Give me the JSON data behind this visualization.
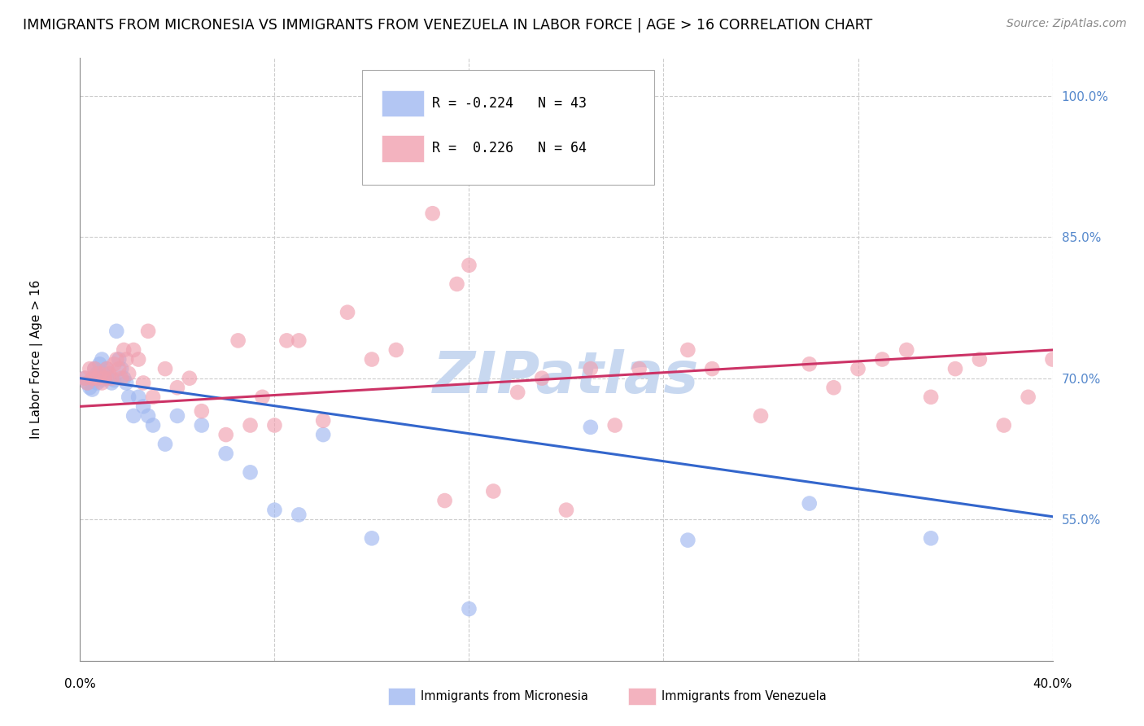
{
  "title": "IMMIGRANTS FROM MICRONESIA VS IMMIGRANTS FROM VENEZUELA IN LABOR FORCE | AGE > 16 CORRELATION CHART",
  "source": "Source: ZipAtlas.com",
  "ylabel": "In Labor Force | Age > 16",
  "ytick_labels": [
    "100.0%",
    "85.0%",
    "70.0%",
    "55.0%"
  ],
  "ytick_values": [
    1.0,
    0.85,
    0.7,
    0.55
  ],
  "xlim": [
    0.0,
    0.4
  ],
  "ylim": [
    0.4,
    1.04
  ],
  "watermark": "ZIPatlas",
  "micronesia_color": "#a0b8f0",
  "venezuela_color": "#f0a0b0",
  "trend_blue_color": "#3366cc",
  "trend_pink_color": "#cc3366",
  "micronesia_x": [
    0.002,
    0.003,
    0.004,
    0.005,
    0.006,
    0.006,
    0.007,
    0.007,
    0.008,
    0.008,
    0.009,
    0.009,
    0.01,
    0.01,
    0.011,
    0.012,
    0.013,
    0.014,
    0.015,
    0.016,
    0.017,
    0.018,
    0.019,
    0.02,
    0.022,
    0.024,
    0.026,
    0.028,
    0.03,
    0.035,
    0.04,
    0.05,
    0.06,
    0.07,
    0.08,
    0.09,
    0.1,
    0.12,
    0.16,
    0.21,
    0.25,
    0.3,
    0.35
  ],
  "micronesia_y": [
    0.7,
    0.695,
    0.69,
    0.688,
    0.7,
    0.71,
    0.695,
    0.705,
    0.7,
    0.715,
    0.698,
    0.72,
    0.705,
    0.7,
    0.71,
    0.7,
    0.695,
    0.698,
    0.75,
    0.72,
    0.71,
    0.7,
    0.695,
    0.68,
    0.66,
    0.68,
    0.67,
    0.66,
    0.65,
    0.63,
    0.66,
    0.65,
    0.62,
    0.6,
    0.56,
    0.555,
    0.64,
    0.53,
    0.455,
    0.648,
    0.528,
    0.567,
    0.53
  ],
  "venezuela_x": [
    0.002,
    0.003,
    0.004,
    0.005,
    0.006,
    0.007,
    0.008,
    0.009,
    0.01,
    0.011,
    0.012,
    0.013,
    0.014,
    0.015,
    0.016,
    0.017,
    0.018,
    0.019,
    0.02,
    0.022,
    0.024,
    0.026,
    0.028,
    0.03,
    0.035,
    0.04,
    0.045,
    0.05,
    0.06,
    0.065,
    0.07,
    0.075,
    0.08,
    0.085,
    0.09,
    0.1,
    0.11,
    0.12,
    0.13,
    0.15,
    0.16,
    0.18,
    0.19,
    0.21,
    0.22,
    0.23,
    0.25,
    0.26,
    0.28,
    0.3,
    0.31,
    0.32,
    0.33,
    0.34,
    0.35,
    0.36,
    0.37,
    0.38,
    0.39,
    0.4,
    0.145,
    0.155,
    0.17,
    0.2
  ],
  "venezuela_y": [
    0.7,
    0.695,
    0.71,
    0.7,
    0.71,
    0.7,
    0.705,
    0.695,
    0.7,
    0.71,
    0.705,
    0.7,
    0.715,
    0.72,
    0.71,
    0.7,
    0.73,
    0.72,
    0.705,
    0.73,
    0.72,
    0.695,
    0.75,
    0.68,
    0.71,
    0.69,
    0.7,
    0.665,
    0.64,
    0.74,
    0.65,
    0.68,
    0.65,
    0.74,
    0.74,
    0.655,
    0.77,
    0.72,
    0.73,
    0.57,
    0.82,
    0.685,
    0.7,
    0.71,
    0.65,
    0.71,
    0.73,
    0.71,
    0.66,
    0.715,
    0.69,
    0.71,
    0.72,
    0.73,
    0.68,
    0.71,
    0.72,
    0.65,
    0.68,
    0.72,
    0.875,
    0.8,
    0.58,
    0.56
  ],
  "blue_trend_x": [
    0.0,
    0.4
  ],
  "blue_trend_y": [
    0.7,
    0.553
  ],
  "pink_trend_x": [
    0.0,
    0.4
  ],
  "pink_trend_y": [
    0.67,
    0.73
  ],
  "grid_color": "#cccccc",
  "background_color": "#ffffff",
  "title_fontsize": 12.5,
  "source_fontsize": 10,
  "axis_label_fontsize": 11,
  "tick_fontsize": 11,
  "legend_fontsize": 12,
  "watermark_color": "#c8d8f0",
  "watermark_fontsize": 52,
  "xtick_vals": [
    0.0,
    0.08,
    0.16,
    0.24,
    0.32,
    0.4
  ],
  "xtick_labels_show": [
    "0.0%",
    "",
    "",
    "",
    "",
    "40.0%"
  ]
}
